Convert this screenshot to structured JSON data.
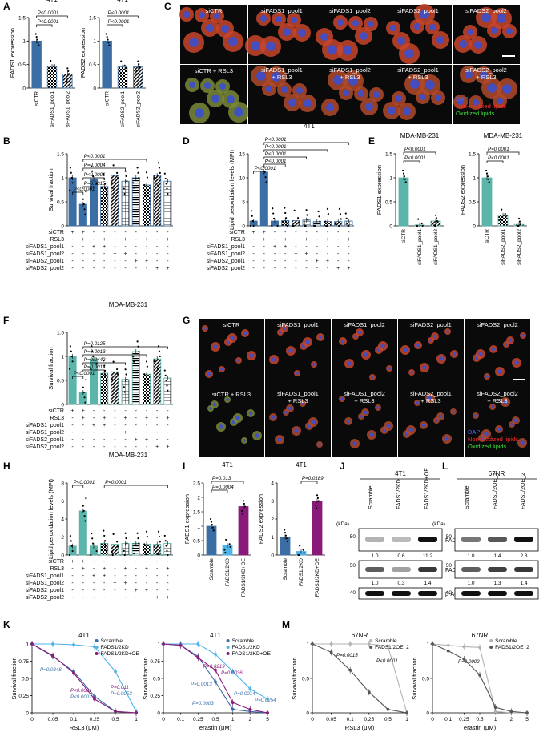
{
  "colors": {
    "blue_4t1": "#3b6ea5",
    "teal_mda": "#5bb5aa",
    "light_blue": "#4fb3e8",
    "purple": "#8a1a7a",
    "grey_67nr": "#b3b3b3",
    "dark_grey_67nr": "#555555",
    "micro_bg": "#0a0a0a"
  },
  "panels": {
    "A": {
      "letter": "A",
      "charts": [
        {
          "title": "4T1",
          "ylabel": "FADS1 expression",
          "ylim": [
            0,
            1.5
          ],
          "yticks": [
            "0",
            "0.5",
            "1",
            "1.5"
          ],
          "categories": [
            "siCTR",
            "siFADS1_pool1",
            "siFADS1_pool2"
          ],
          "values": [
            1.0,
            0.46,
            0.3
          ],
          "patterns": [
            "solid",
            "checker",
            "stripe"
          ],
          "pvals": [
            "P<0.0001",
            "P<0.0001"
          ]
        },
        {
          "title": "4T1",
          "ylabel": "FADS2 expression",
          "ylim": [
            0,
            1.5
          ],
          "yticks": [
            "0",
            "0.5",
            "1",
            "1.5"
          ],
          "categories": [
            "siCTR",
            "siFADS2_pool1",
            "siFADS2_pool2"
          ],
          "values": [
            1.0,
            0.45,
            0.45
          ],
          "patterns": [
            "solid",
            "checker",
            "stripe"
          ],
          "pvals": [
            "P<0.0001",
            "P<0.0001"
          ]
        }
      ]
    },
    "C": {
      "letter": "C",
      "row1": [
        "siCTR",
        "siFADS1_pool1",
        "siFADS1_pool2",
        "siFADS2_pool1",
        "siFADS2_pool2"
      ],
      "row2": [
        "siCTR + RSL3",
        "siFADS1_pool1 + RSL3",
        "siFADS1_pool2 + RSL3",
        "siFADS2_pool1 + RSL3",
        "siFADS2_pool2 + RSL3"
      ],
      "legend": [
        "DAPI",
        "Non-oxidized lipids",
        "Oxidized lipids"
      ]
    },
    "B": {
      "letter": "B",
      "ylabel": "Survival fraction",
      "ylim": [
        0,
        1.5
      ],
      "yticks": [
        "0",
        "0.5",
        "1",
        "1.5"
      ],
      "values": [
        1.0,
        0.45,
        0.98,
        0.82,
        1.05,
        0.93,
        1.0,
        0.85,
        1.05,
        0.93
      ],
      "pvals": [
        "P<0.0001",
        "P=0.0015",
        "P<0.0001",
        "P=0.0004",
        "P<0.0001"
      ]
    },
    "D": {
      "letter": "D",
      "title": "4T1",
      "ylabel": "Lipid peroxidation levels (MFI)",
      "ylim": [
        0,
        15
      ],
      "yticks": [
        "0",
        "5",
        "10",
        "15"
      ],
      "values": [
        1.0,
        11.2,
        1.0,
        1.1,
        1.1,
        1.2,
        0.9,
        0.9,
        0.9,
        1.0
      ],
      "pvals": [
        "P<0.0001",
        "P<0.0001",
        "P<0.0001",
        "P<0.0001",
        "P<0.0001"
      ]
    },
    "E": {
      "letter": "E",
      "charts": [
        {
          "title": "MDA-MB-231",
          "ylabel": "FADS1 expression",
          "ylim": [
            0,
            1.5
          ],
          "yticks": [
            "0",
            "0.5",
            "1",
            "1.5"
          ],
          "categories": [
            "siCTR",
            "siFADS1_pool1",
            "siFADS1_pool2"
          ],
          "values": [
            1.0,
            0.02,
            0.1
          ],
          "pvals": [
            "P<0.0001",
            "P<0.0001"
          ]
        },
        {
          "title": "MDA-MB-231",
          "ylabel": "FADS2 expression",
          "ylim": [
            0,
            1.5
          ],
          "yticks": [
            "0",
            "0.5",
            "1",
            "1.5"
          ],
          "categories": [
            "siCTR",
            "siFADS2_pool1",
            "siFADS2_pool2"
          ],
          "values": [
            1.0,
            0.22,
            0.03
          ],
          "pvals": [
            "P=0.0001",
            "P<0.0001"
          ]
        }
      ]
    },
    "F": {
      "letter": "F",
      "title": "MDA-MB-231",
      "ylabel": "Survival fraction",
      "ylim": [
        0,
        1.5
      ],
      "yticks": [
        "0",
        "0.5",
        "1",
        "1.5"
      ],
      "values": [
        1.0,
        0.25,
        0.95,
        0.65,
        0.68,
        0.52,
        1.1,
        0.63,
        0.95,
        0.55
      ],
      "pvals": [
        "P<0.0001",
        "P=0.0014",
        "P=0.0442",
        "P=0.0013",
        "P=0.0125"
      ]
    },
    "G": {
      "letter": "G",
      "row1": [
        "siCTR",
        "siFADS1_pool1",
        "siFADS1_pool2",
        "siFADS2_pool1",
        "siFADS2_pool2"
      ],
      "row2": [
        "siCTR + RSL3",
        "siFADS1_pool1 + RSL3",
        "siFADS1_pool2 + RSL3",
        "siFADS2_pool1 + RSL3",
        "siFADS2_pool2 + RSL3"
      ],
      "legend": [
        "DAPI",
        "Non-oxidized lipids",
        "Oxidized lipids"
      ]
    },
    "H": {
      "letter": "H",
      "title": "MDA-MB-231",
      "ylabel": "Lipid peroxidation levels (MFI)",
      "ylim": [
        0,
        8
      ],
      "yticks": [
        "0",
        "2",
        "4",
        "6",
        "8"
      ],
      "values": [
        1.0,
        4.9,
        1.0,
        1.3,
        1.2,
        1.3,
        1.3,
        1.2,
        1.2,
        1.3
      ],
      "pvals": [
        "P<0.0001",
        "P<0.0001"
      ]
    },
    "I": {
      "letter": "I",
      "charts": [
        {
          "title": "4T1",
          "ylabel": "FADS1 expression",
          "ylim": [
            0,
            2.5
          ],
          "yticks": [
            "0",
            "0.5",
            "1",
            "1.5",
            "2",
            "2.5"
          ],
          "categories": [
            "Scramble",
            "FADS1/2KD",
            "FADS1/2KD+OE"
          ],
          "values": [
            1.0,
            0.33,
            1.68
          ],
          "pvals": [
            "P=0.013",
            "P=0.0004"
          ]
        },
        {
          "title": "4T1",
          "ylabel": "FADS2 expression",
          "ylim": [
            0,
            4
          ],
          "yticks": [
            "0",
            "1",
            "2",
            "3",
            "4"
          ],
          "categories": [
            "Scramble",
            "FADS1/2KD",
            "FADS1/2KD+OE"
          ],
          "values": [
            1.0,
            0.2,
            3.0
          ],
          "pvals": [
            "P=0.0189"
          ]
        }
      ]
    },
    "J": {
      "letter": "J",
      "title": "4T1",
      "lanes": [
        "Scramble",
        "FADS1/2KD",
        "FADS1/2KD+OE"
      ],
      "kda": [
        "(kDa)",
        "50",
        "50",
        "40"
      ],
      "proteins": [
        "FADS1",
        "FADS2",
        "β-ACTIN"
      ],
      "fads1_quant": [
        "1.0",
        "0.6",
        "11.2"
      ],
      "fads2_quant": [
        "1.0",
        "0.3",
        "1.4"
      ]
    },
    "L": {
      "letter": "L",
      "title": "67NR",
      "lanes": [
        "Scramble",
        "FADS1/2OE_1",
        "FADS1/2OE_2"
      ],
      "kda": [
        "(kDa)",
        "50",
        "50",
        "40"
      ],
      "proteins": [
        "FADS1",
        "FADS2",
        "β-ACTIN"
      ],
      "fads1_quant": [
        "1.0",
        "1.4",
        "2.3"
      ],
      "fads2_quant": [
        "1.0",
        "1.3",
        "1.4"
      ]
    },
    "K": {
      "letter": "K",
      "legend": [
        "Scramble",
        "FADS1/2KD",
        "FADS1/2KD+OE"
      ],
      "charts": [
        {
          "title": "4T1",
          "xlabel": "RSL3 (μM)",
          "ylabel": "Survival fraction",
          "xticks": [
            "0",
            "0.05",
            "0.1",
            "0.25",
            "0.5",
            "1"
          ],
          "yticks": [
            "0",
            "0.25",
            "0.5",
            "0.75",
            "1"
          ],
          "series": [
            {
              "name": "Scramble",
              "x": [
                0,
                0.05,
                0.1,
                0.25,
                0.5,
                1
              ],
              "y": [
                1.0,
                0.82,
                0.6,
                0.24,
                0.02,
                0.0
              ]
            },
            {
              "name": "FADS1/2KD",
              "x": [
                0,
                0.05,
                0.1,
                0.25,
                0.5,
                1
              ],
              "y": [
                1.0,
                1.0,
                0.99,
                0.96,
                0.6,
                0.02
              ]
            },
            {
              "name": "FADS1/2KD+OE",
              "x": [
                0,
                0.05,
                0.1,
                0.25,
                0.5,
                1
              ],
              "y": [
                1.0,
                0.83,
                0.58,
                0.2,
                0.02,
                0.0
              ]
            }
          ],
          "pvals": [
            "P=0.0348",
            "P<0.0001",
            "P<0.0001",
            "P=0.011",
            "P=0.0053"
          ]
        },
        {
          "title": "4T1",
          "xlabel": "erastin (μM)",
          "ylabel": "Survival fraction",
          "xticks": [
            "0",
            "0.1",
            "0.25",
            "0.5",
            "1",
            "2",
            "5"
          ],
          "yticks": [
            "0",
            "0.25",
            "0.5",
            "0.75",
            "1"
          ],
          "series": [
            {
              "name": "Scramble",
              "x": [
                0,
                0.1,
                0.25,
                0.5,
                1,
                2,
                5
              ],
              "y": [
                1.0,
                0.98,
                0.82,
                0.45,
                0.05,
                0.02,
                0.0
              ]
            },
            {
              "name": "FADS1/2KD",
              "x": [
                0,
                0.1,
                0.25,
                0.5,
                1,
                2,
                5
              ],
              "y": [
                1.0,
                1.0,
                1.0,
                0.85,
                0.6,
                0.35,
                0.2
              ]
            },
            {
              "name": "FADS1/2KD+OE",
              "x": [
                0,
                0.1,
                0.25,
                0.5,
                1,
                2,
                5
              ],
              "y": [
                1.0,
                0.98,
                0.8,
                0.62,
                0.15,
                0.05,
                0.0
              ]
            }
          ],
          "pvals": [
            "P=0.0219",
            "P=0.0036",
            "P=0.0013",
            "P=0.0214",
            "P=0.0254",
            "P=0.0003"
          ]
        }
      ]
    },
    "M": {
      "letter": "M",
      "legend": [
        "Scramble",
        "FADS1/2OE_2"
      ],
      "charts": [
        {
          "title": "67NR",
          "xlabel": "RSL3 (μM)",
          "ylabel": "Survival fraction",
          "xticks": [
            "0",
            "0.05",
            "0.1",
            "0.25",
            "0.5",
            "1"
          ],
          "yticks": [
            "0",
            "0.5",
            "1"
          ],
          "series": [
            {
              "name": "Scramble",
              "x": [
                0,
                0.05,
                0.1,
                0.25,
                0.5,
                1
              ],
              "y": [
                1.0,
                1.0,
                1.0,
                1.0,
                0.97,
                0.0
              ]
            },
            {
              "name": "FADS1/2OE_2",
              "x": [
                0,
                0.05,
                0.1,
                0.25,
                0.5,
                1
              ],
              "y": [
                1.0,
                0.88,
                0.62,
                0.3,
                0.05,
                0.0
              ]
            }
          ],
          "pvals": [
            "P=0.0015",
            "P<0.0001"
          ]
        },
        {
          "title": "67NR",
          "xlabel": "erastin (μM)",
          "ylabel": "Survival fraction",
          "xticks": [
            "0",
            "0.1",
            "0.25",
            "0.5",
            "1",
            "2",
            "5"
          ],
          "yticks": [
            "0",
            "0.5",
            "1"
          ],
          "series": [
            {
              "name": "Scramble",
              "x": [
                0,
                0.1,
                0.25,
                0.5,
                1,
                2,
                5
              ],
              "y": [
                1.0,
                0.98,
                0.96,
                0.95,
                0.02,
                0.0,
                0.0
              ]
            },
            {
              "name": "FADS1/2OE_2",
              "x": [
                0,
                0.1,
                0.25,
                0.5,
                1,
                2,
                5
              ],
              "y": [
                1.0,
                0.9,
                0.78,
                0.55,
                0.08,
                0.02,
                0.0
              ]
            }
          ],
          "pvals": [
            "P=0.0002"
          ]
        }
      ]
    },
    "condition_table": {
      "rows": [
        "siCTR",
        "RSL3",
        "siFADS1_pool1",
        "siFADS1_pool2",
        "siFADS2_pool1",
        "siFADS2_pool2"
      ],
      "signs": [
        [
          "+",
          "+",
          "-",
          "-",
          "-",
          "-",
          "-",
          "-",
          "-",
          "-"
        ],
        [
          "-",
          "+",
          "-",
          "+",
          "-",
          "+",
          "-",
          "+",
          "-",
          "+"
        ],
        [
          "-",
          "-",
          "+",
          "+",
          "-",
          "-",
          "-",
          "-",
          "-",
          "-"
        ],
        [
          "-",
          "-",
          "-",
          "-",
          "+",
          "+",
          "-",
          "-",
          "-",
          "-"
        ],
        [
          "-",
          "-",
          "-",
          "-",
          "-",
          "-",
          "+",
          "+",
          "-",
          "-"
        ],
        [
          "-",
          "-",
          "-",
          "-",
          "-",
          "-",
          "-",
          "-",
          "+",
          "+"
        ]
      ]
    }
  },
  "chart_data": [
    {
      "type": "bar",
      "title": "4T1",
      "categories": [
        "siCTR",
        "siFADS1_pool1",
        "siFADS1_pool2"
      ],
      "values": [
        1.0,
        0.46,
        0.3
      ],
      "ylabel": "FADS1 expression",
      "ylim": [
        0,
        1.5
      ]
    },
    {
      "type": "bar",
      "title": "4T1",
      "categories": [
        "siCTR",
        "siFADS2_pool1",
        "siFADS2_pool2"
      ],
      "values": [
        1.0,
        0.45,
        0.45
      ],
      "ylabel": "FADS2 expression",
      "ylim": [
        0,
        1.5
      ]
    },
    {
      "type": "bar",
      "ylabel": "Survival fraction",
      "values": [
        1.0,
        0.45,
        0.98,
        0.82,
        1.05,
        0.93,
        1.0,
        0.85,
        1.05,
        0.93
      ],
      "ylim": [
        0,
        1.5
      ]
    },
    {
      "type": "bar",
      "title": "4T1",
      "ylabel": "Lipid peroxidation levels (MFI)",
      "values": [
        1.0,
        11.2,
        1.0,
        1.1,
        1.1,
        1.2,
        0.9,
        0.9,
        0.9,
        1.0
      ],
      "ylim": [
        0,
        15
      ]
    },
    {
      "type": "bar",
      "title": "MDA-MB-231",
      "categories": [
        "siCTR",
        "siFADS1_pool1",
        "siFADS1_pool2"
      ],
      "values": [
        1.0,
        0.02,
        0.1
      ],
      "ylabel": "FADS1 expression"
    },
    {
      "type": "bar",
      "title": "MDA-MB-231",
      "categories": [
        "siCTR",
        "siFADS2_pool1",
        "siFADS2_pool2"
      ],
      "values": [
        1.0,
        0.22,
        0.03
      ],
      "ylabel": "FADS2 expression"
    },
    {
      "type": "bar",
      "title": "MDA-MB-231",
      "ylabel": "Survival fraction",
      "values": [
        1.0,
        0.25,
        0.95,
        0.65,
        0.68,
        0.52,
        1.1,
        0.63,
        0.95,
        0.55
      ]
    },
    {
      "type": "bar",
      "title": "MDA-MB-231",
      "ylabel": "Lipid peroxidation levels (MFI)",
      "values": [
        1.0,
        4.9,
        1.0,
        1.3,
        1.2,
        1.3,
        1.3,
        1.2,
        1.2,
        1.3
      ]
    },
    {
      "type": "bar",
      "title": "4T1",
      "categories": [
        "Scramble",
        "FADS1/2KD",
        "FADS1/2KD+OE"
      ],
      "values": [
        1.0,
        0.33,
        1.68
      ],
      "ylabel": "FADS1 expression"
    },
    {
      "type": "bar",
      "title": "4T1",
      "categories": [
        "Scramble",
        "FADS1/2KD",
        "FADS1/2KD+OE"
      ],
      "values": [
        1.0,
        0.2,
        3.0
      ],
      "ylabel": "FADS2 expression"
    },
    {
      "type": "line",
      "title": "4T1",
      "xlabel": "RSL3 (μM)",
      "ylabel": "Survival fraction"
    },
    {
      "type": "line",
      "title": "4T1",
      "xlabel": "erastin (μM)",
      "ylabel": "Survival fraction"
    },
    {
      "type": "line",
      "title": "67NR",
      "xlabel": "RSL3 (μM)",
      "ylabel": "Survival fraction"
    },
    {
      "type": "line",
      "title": "67NR",
      "xlabel": "erastin (μM)",
      "ylabel": "Survival fraction"
    }
  ]
}
